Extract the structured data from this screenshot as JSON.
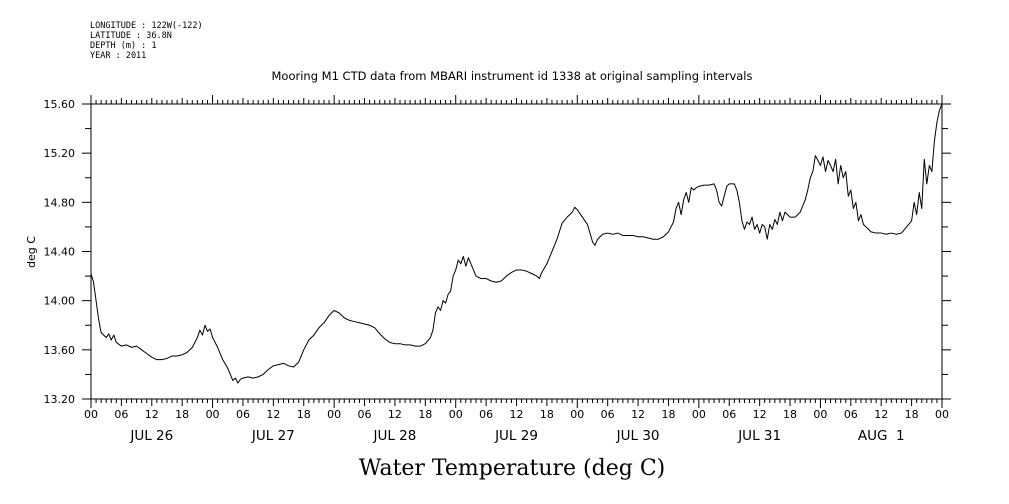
{
  "meta": {
    "longitude": "LONGITUDE : 122W(-122)",
    "latitude": "LATITUDE : 36.8N",
    "depth": "DEPTH (m) : 1",
    "year": "YEAR : 2011"
  },
  "chart_data": {
    "type": "line",
    "title": "Mooring M1 CTD data from MBARI instrument id 1338 at original sampling intervals",
    "xlabel": "Water Temperature (deg C)",
    "ylabel": "deg C",
    "ylim": [
      13.2,
      15.6
    ],
    "yticks": [
      "13.20",
      "13.60",
      "14.00",
      "14.40",
      "14.80",
      "15.20",
      "15.60"
    ],
    "xlim_hours": [
      0,
      168
    ],
    "hour_tick_labels": [
      "00",
      "06",
      "12",
      "18",
      "00",
      "06",
      "12",
      "18",
      "00",
      "06",
      "12",
      "18",
      "00",
      "06",
      "12",
      "18",
      "00",
      "06",
      "12",
      "18",
      "00",
      "06",
      "12",
      "18",
      "00",
      "06",
      "12",
      "18",
      "00"
    ],
    "day_labels": [
      "JUL 26",
      "JUL 27",
      "JUL 28",
      "JUL 29",
      "JUL 30",
      "JUL 31",
      "AUG  1"
    ],
    "grid": false,
    "series": [
      {
        "values": [
          [
            0,
            14.22
          ],
          [
            0.5,
            14.15
          ],
          [
            1,
            14.0
          ],
          [
            1.5,
            13.85
          ],
          [
            2,
            13.74
          ],
          [
            2.5,
            13.72
          ],
          [
            3,
            13.7
          ],
          [
            3.5,
            13.73
          ],
          [
            4,
            13.68
          ],
          [
            4.5,
            13.72
          ],
          [
            5,
            13.66
          ],
          [
            6,
            13.63
          ],
          [
            7,
            13.64
          ],
          [
            8,
            13.62
          ],
          [
            9,
            13.63
          ],
          [
            10,
            13.6
          ],
          [
            11,
            13.57
          ],
          [
            12,
            13.54
          ],
          [
            13,
            13.52
          ],
          [
            14,
            13.52
          ],
          [
            15,
            13.53
          ],
          [
            16,
            13.55
          ],
          [
            17,
            13.55
          ],
          [
            18,
            13.56
          ],
          [
            19,
            13.58
          ],
          [
            20,
            13.62
          ],
          [
            21,
            13.7
          ],
          [
            21.5,
            13.76
          ],
          [
            22,
            13.72
          ],
          [
            22.5,
            13.8
          ],
          [
            23,
            13.75
          ],
          [
            23.5,
            13.77
          ],
          [
            24,
            13.7
          ],
          [
            25,
            13.62
          ],
          [
            26,
            13.52
          ],
          [
            27,
            13.45
          ],
          [
            27.5,
            13.4
          ],
          [
            28,
            13.35
          ],
          [
            28.5,
            13.37
          ],
          [
            29,
            13.33
          ],
          [
            29.5,
            13.36
          ],
          [
            30,
            13.37
          ],
          [
            31,
            13.38
          ],
          [
            32,
            13.37
          ],
          [
            33,
            13.38
          ],
          [
            34,
            13.4
          ],
          [
            35,
            13.44
          ],
          [
            36,
            13.47
          ],
          [
            37,
            13.48
          ],
          [
            38,
            13.49
          ],
          [
            39,
            13.47
          ],
          [
            40,
            13.46
          ],
          [
            41,
            13.5
          ],
          [
            42,
            13.6
          ],
          [
            43,
            13.68
          ],
          [
            44,
            13.72
          ],
          [
            45,
            13.78
          ],
          [
            46,
            13.82
          ],
          [
            47,
            13.88
          ],
          [
            48,
            13.92
          ],
          [
            49,
            13.9
          ],
          [
            50,
            13.86
          ],
          [
            51,
            13.84
          ],
          [
            52,
            13.83
          ],
          [
            53,
            13.82
          ],
          [
            54,
            13.81
          ],
          [
            55,
            13.8
          ],
          [
            56,
            13.78
          ],
          [
            57,
            13.73
          ],
          [
            58,
            13.69
          ],
          [
            59,
            13.66
          ],
          [
            60,
            13.65
          ],
          [
            61,
            13.65
          ],
          [
            62,
            13.64
          ],
          [
            63,
            13.64
          ],
          [
            64,
            13.63
          ],
          [
            65,
            13.63
          ],
          [
            66,
            13.65
          ],
          [
            67,
            13.7
          ],
          [
            67.5,
            13.76
          ],
          [
            68,
            13.9
          ],
          [
            68.5,
            13.95
          ],
          [
            69,
            13.92
          ],
          [
            69.5,
            14.0
          ],
          [
            70,
            13.98
          ],
          [
            70.5,
            14.05
          ],
          [
            71,
            14.08
          ],
          [
            71.5,
            14.2
          ],
          [
            72,
            14.25
          ],
          [
            72.5,
            14.33
          ],
          [
            73,
            14.3
          ],
          [
            73.5,
            14.36
          ],
          [
            74,
            14.28
          ],
          [
            74.5,
            14.35
          ],
          [
            75,
            14.3
          ],
          [
            76,
            14.2
          ],
          [
            77,
            14.18
          ],
          [
            78,
            14.18
          ],
          [
            79,
            14.16
          ],
          [
            80,
            14.15
          ],
          [
            81,
            14.16
          ],
          [
            82,
            14.2
          ],
          [
            83,
            14.23
          ],
          [
            84,
            14.25
          ],
          [
            85,
            14.25
          ],
          [
            86,
            14.24
          ],
          [
            87,
            14.22
          ],
          [
            88,
            14.2
          ],
          [
            88.5,
            14.18
          ],
          [
            89,
            14.23
          ],
          [
            90,
            14.3
          ],
          [
            91,
            14.4
          ],
          [
            92,
            14.5
          ],
          [
            93,
            14.63
          ],
          [
            94,
            14.68
          ],
          [
            95,
            14.72
          ],
          [
            95.5,
            14.76
          ],
          [
            96,
            14.74
          ],
          [
            97,
            14.68
          ],
          [
            98,
            14.62
          ],
          [
            98.5,
            14.55
          ],
          [
            99,
            14.48
          ],
          [
            99.5,
            14.45
          ],
          [
            100,
            14.5
          ],
          [
            101,
            14.54
          ],
          [
            102,
            14.55
          ],
          [
            103,
            14.54
          ],
          [
            104,
            14.55
          ],
          [
            105,
            14.53
          ],
          [
            106,
            14.53
          ],
          [
            107,
            14.53
          ],
          [
            108,
            14.52
          ],
          [
            109,
            14.52
          ],
          [
            110,
            14.51
          ],
          [
            111,
            14.5
          ],
          [
            112,
            14.5
          ],
          [
            113,
            14.52
          ],
          [
            114,
            14.56
          ],
          [
            115,
            14.64
          ],
          [
            115.5,
            14.75
          ],
          [
            116,
            14.8
          ],
          [
            116.5,
            14.7
          ],
          [
            117,
            14.82
          ],
          [
            117.5,
            14.88
          ],
          [
            118,
            14.8
          ],
          [
            118.5,
            14.92
          ],
          [
            119,
            14.9
          ],
          [
            119.5,
            14.92
          ],
          [
            120,
            14.93
          ],
          [
            121,
            14.94
          ],
          [
            122,
            14.94
          ],
          [
            123,
            14.95
          ],
          [
            123.5,
            14.9
          ],
          [
            124,
            14.8
          ],
          [
            124.5,
            14.77
          ],
          [
            125,
            14.85
          ],
          [
            125.5,
            14.93
          ],
          [
            126,
            14.95
          ],
          [
            127,
            14.95
          ],
          [
            127.5,
            14.9
          ],
          [
            128,
            14.8
          ],
          [
            128.5,
            14.65
          ],
          [
            129,
            14.58
          ],
          [
            129.5,
            14.64
          ],
          [
            130,
            14.62
          ],
          [
            130.5,
            14.68
          ],
          [
            131,
            14.58
          ],
          [
            131.5,
            14.62
          ],
          [
            132,
            14.55
          ],
          [
            132.5,
            14.62
          ],
          [
            133,
            14.6
          ],
          [
            133.5,
            14.5
          ],
          [
            134,
            14.62
          ],
          [
            134.5,
            14.58
          ],
          [
            135,
            14.66
          ],
          [
            135.5,
            14.62
          ],
          [
            136,
            14.72
          ],
          [
            136.5,
            14.65
          ],
          [
            137,
            14.72
          ],
          [
            138,
            14.68
          ],
          [
            139,
            14.68
          ],
          [
            140,
            14.72
          ],
          [
            141,
            14.82
          ],
          [
            141.5,
            14.9
          ],
          [
            142,
            15.0
          ],
          [
            142.5,
            15.05
          ],
          [
            143,
            15.18
          ],
          [
            143.5,
            15.14
          ],
          [
            144,
            15.1
          ],
          [
            144.5,
            15.17
          ],
          [
            145,
            15.05
          ],
          [
            145.5,
            15.14
          ],
          [
            146,
            15.1
          ],
          [
            146.5,
            15.05
          ],
          [
            147,
            15.15
          ],
          [
            147.5,
            14.95
          ],
          [
            148,
            15.1
          ],
          [
            148.5,
            15.0
          ],
          [
            149,
            15.05
          ],
          [
            149.5,
            14.85
          ],
          [
            150,
            14.9
          ],
          [
            150.5,
            14.75
          ],
          [
            151,
            14.8
          ],
          [
            151.5,
            14.65
          ],
          [
            152,
            14.7
          ],
          [
            152.5,
            14.62
          ],
          [
            153,
            14.6
          ],
          [
            154,
            14.56
          ],
          [
            155,
            14.55
          ],
          [
            156,
            14.55
          ],
          [
            157,
            14.54
          ],
          [
            158,
            14.55
          ],
          [
            159,
            14.54
          ],
          [
            160,
            14.55
          ],
          [
            161,
            14.6
          ],
          [
            162,
            14.65
          ],
          [
            162.5,
            14.8
          ],
          [
            163,
            14.7
          ],
          [
            163.5,
            14.88
          ],
          [
            164,
            14.75
          ],
          [
            164.5,
            15.15
          ],
          [
            165,
            14.95
          ],
          [
            165.5,
            15.1
          ],
          [
            166,
            15.05
          ],
          [
            166.5,
            15.3
          ],
          [
            167,
            15.45
          ],
          [
            167.5,
            15.55
          ],
          [
            168,
            15.6
          ]
        ]
      }
    ]
  }
}
